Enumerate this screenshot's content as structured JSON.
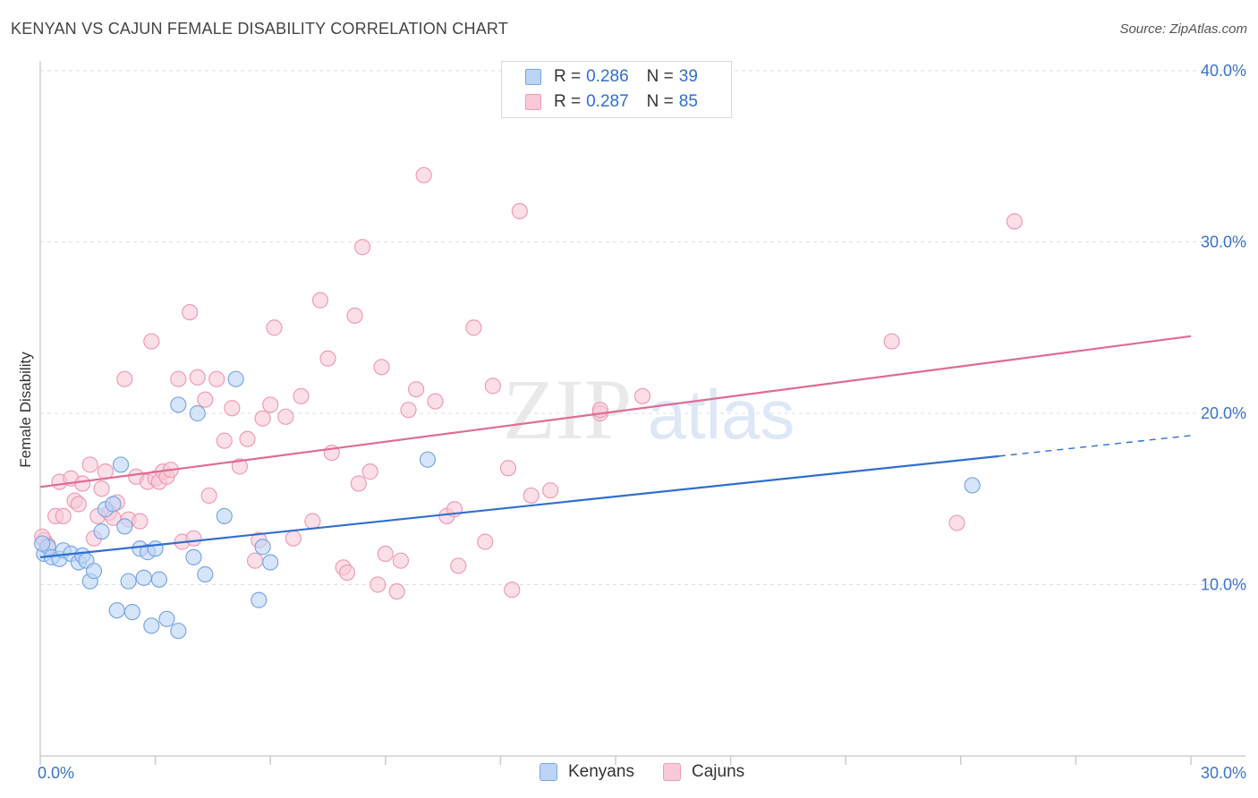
{
  "title": "KENYAN VS CAJUN FEMALE DISABILITY CORRELATION CHART",
  "source": "Source: ZipAtlas.com",
  "watermark": {
    "zip": "ZIP",
    "atlas": "atlas"
  },
  "legend": {
    "kenyans": {
      "r_label": "R =",
      "r_value": "0.286",
      "n_label": "N =",
      "n_value": "39"
    },
    "cajuns": {
      "r_label": "R =",
      "r_value": "0.287",
      "n_label": "N =",
      "n_value": "85"
    }
  },
  "bottom_legend": {
    "kenyans": "Kenyans",
    "cajuns": "Cajuns"
  },
  "colors": {
    "kenyan_fill": "#bcd4f6",
    "kenyan_stroke": "#7aa6e3",
    "kenyan_line": "#2f6fd0",
    "cajun_fill": "#f9c9d7",
    "cajun_stroke": "#ee9bb4",
    "cajun_line": "#e06b95",
    "tick_text": "#3a73c8"
  },
  "chart_data": {
    "type": "scatter",
    "title": "KENYAN VS CAJUN FEMALE DISABILITY CORRELATION CHART",
    "xlabel": "",
    "ylabel": "Female Disability",
    "xlim": [
      0,
      30
    ],
    "ylim": [
      0,
      40
    ],
    "x_tick_labels": [
      {
        "value": 0,
        "label": "0.0%"
      },
      {
        "value": 30,
        "label": "30.0%"
      }
    ],
    "y_tick_labels": [
      {
        "value": 10,
        "label": "10.0%"
      },
      {
        "value": 20,
        "label": "20.0%"
      },
      {
        "value": 30,
        "label": "30.0%"
      },
      {
        "value": 40,
        "label": "40.0%"
      }
    ],
    "grid": true,
    "series": [
      {
        "name": "Kenyans",
        "trend": {
          "x": [
            0,
            25
          ],
          "y": [
            11.6,
            17.5
          ],
          "dashed_to": [
            30,
            18.7
          ]
        },
        "points": [
          [
            0.1,
            11.8
          ],
          [
            0.2,
            12.2
          ],
          [
            0.3,
            11.6
          ],
          [
            0.5,
            11.5
          ],
          [
            0.6,
            12.0
          ],
          [
            0.8,
            11.8
          ],
          [
            1.0,
            11.3
          ],
          [
            1.1,
            11.7
          ],
          [
            1.2,
            11.4
          ],
          [
            1.3,
            10.2
          ],
          [
            1.4,
            10.8
          ],
          [
            1.6,
            13.1
          ],
          [
            1.7,
            14.4
          ],
          [
            1.9,
            14.7
          ],
          [
            2.0,
            8.5
          ],
          [
            2.1,
            17.0
          ],
          [
            2.2,
            13.4
          ],
          [
            2.3,
            10.2
          ],
          [
            2.4,
            8.4
          ],
          [
            2.6,
            12.1
          ],
          [
            2.7,
            10.4
          ],
          [
            2.8,
            11.9
          ],
          [
            2.9,
            7.6
          ],
          [
            3.0,
            12.1
          ],
          [
            3.1,
            10.3
          ],
          [
            3.3,
            8.0
          ],
          [
            3.6,
            7.3
          ],
          [
            3.6,
            20.5
          ],
          [
            4.0,
            11.6
          ],
          [
            4.1,
            20.0
          ],
          [
            4.3,
            10.6
          ],
          [
            4.8,
            14.0
          ],
          [
            5.1,
            22.0
          ],
          [
            5.7,
            9.1
          ],
          [
            5.8,
            12.2
          ],
          [
            6.0,
            11.3
          ],
          [
            10.1,
            17.3
          ],
          [
            24.3,
            15.8
          ],
          [
            0.05,
            12.4
          ]
        ]
      },
      {
        "name": "Cajuns",
        "trend": {
          "x": [
            0,
            30
          ],
          "y": [
            15.7,
            24.5
          ]
        },
        "points": [
          [
            0.1,
            12.6
          ],
          [
            0.2,
            12.3
          ],
          [
            0.4,
            14.0
          ],
          [
            0.5,
            16.0
          ],
          [
            0.6,
            14.0
          ],
          [
            0.8,
            16.2
          ],
          [
            0.9,
            14.9
          ],
          [
            1.0,
            14.7
          ],
          [
            1.1,
            15.9
          ],
          [
            1.3,
            17.0
          ],
          [
            1.4,
            12.7
          ],
          [
            1.5,
            14.0
          ],
          [
            1.6,
            15.6
          ],
          [
            1.7,
            16.6
          ],
          [
            1.8,
            14.2
          ],
          [
            1.9,
            13.9
          ],
          [
            2.0,
            14.8
          ],
          [
            2.2,
            22.0
          ],
          [
            2.3,
            13.8
          ],
          [
            2.5,
            16.3
          ],
          [
            2.6,
            13.7
          ],
          [
            2.8,
            16.0
          ],
          [
            2.9,
            24.2
          ],
          [
            3.0,
            16.2
          ],
          [
            3.1,
            16.0
          ],
          [
            3.2,
            16.6
          ],
          [
            3.3,
            16.3
          ],
          [
            3.4,
            16.7
          ],
          [
            3.6,
            22.0
          ],
          [
            3.7,
            12.5
          ],
          [
            3.9,
            25.9
          ],
          [
            4.0,
            12.7
          ],
          [
            4.1,
            22.1
          ],
          [
            4.3,
            20.8
          ],
          [
            4.4,
            15.2
          ],
          [
            4.6,
            22.0
          ],
          [
            4.8,
            18.4
          ],
          [
            5.0,
            20.3
          ],
          [
            5.2,
            16.9
          ],
          [
            5.4,
            18.5
          ],
          [
            5.6,
            11.4
          ],
          [
            5.7,
            12.6
          ],
          [
            5.8,
            19.7
          ],
          [
            6.0,
            20.5
          ],
          [
            6.1,
            25.0
          ],
          [
            6.4,
            19.8
          ],
          [
            6.6,
            12.7
          ],
          [
            6.8,
            21.0
          ],
          [
            7.1,
            13.7
          ],
          [
            7.3,
            26.6
          ],
          [
            7.5,
            23.2
          ],
          [
            7.6,
            17.7
          ],
          [
            7.9,
            11.0
          ],
          [
            8.0,
            10.7
          ],
          [
            8.2,
            25.7
          ],
          [
            8.3,
            15.9
          ],
          [
            8.4,
            29.7
          ],
          [
            8.6,
            16.6
          ],
          [
            8.8,
            10.0
          ],
          [
            8.9,
            22.7
          ],
          [
            9.0,
            11.8
          ],
          [
            9.3,
            9.6
          ],
          [
            9.4,
            11.4
          ],
          [
            9.6,
            20.2
          ],
          [
            9.8,
            21.4
          ],
          [
            10.0,
            33.9
          ],
          [
            10.3,
            20.7
          ],
          [
            10.6,
            14.0
          ],
          [
            10.8,
            14.4
          ],
          [
            10.9,
            11.1
          ],
          [
            11.3,
            25.0
          ],
          [
            11.6,
            12.5
          ],
          [
            11.8,
            21.6
          ],
          [
            12.2,
            16.8
          ],
          [
            12.3,
            9.7
          ],
          [
            12.5,
            31.8
          ],
          [
            12.8,
            15.2
          ],
          [
            13.3,
            15.5
          ],
          [
            14.6,
            20.0
          ],
          [
            14.6,
            20.2
          ],
          [
            15.7,
            21.0
          ],
          [
            22.2,
            24.2
          ],
          [
            23.9,
            13.6
          ],
          [
            25.4,
            31.2
          ],
          [
            0.05,
            12.8
          ]
        ]
      }
    ]
  }
}
